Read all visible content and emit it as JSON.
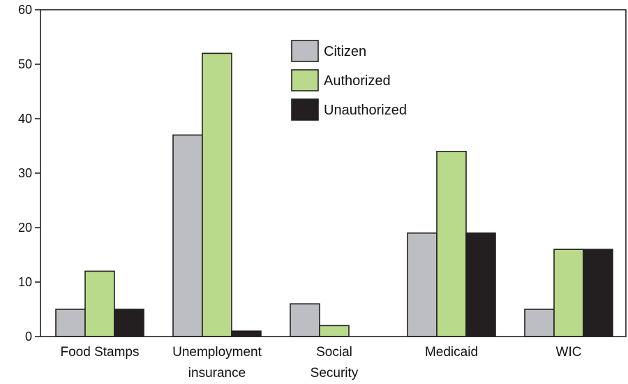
{
  "chart_data": {
    "type": "bar",
    "categories": [
      [
        "Food Stamps"
      ],
      [
        "Unemployment",
        "insurance"
      ],
      [
        "Social",
        "Security"
      ],
      [
        "Medicaid"
      ],
      [
        "WIC"
      ]
    ],
    "series": [
      {
        "name": "Citizen",
        "color": "#bdbec3",
        "values": [
          5,
          37,
          6,
          19,
          5
        ]
      },
      {
        "name": "Authorized",
        "color": "#b8da8a",
        "values": [
          12,
          52,
          2,
          34,
          16
        ]
      },
      {
        "name": "Unauthorized",
        "color": "#231f20",
        "values": [
          5,
          1,
          0,
          19,
          16
        ]
      }
    ],
    "title": "",
    "xlabel": "",
    "ylabel": "",
    "ylim": [
      0,
      60
    ],
    "yticks": [
      0,
      10,
      20,
      30,
      40,
      50,
      60
    ],
    "grid": false,
    "legend_position": "top-center"
  }
}
